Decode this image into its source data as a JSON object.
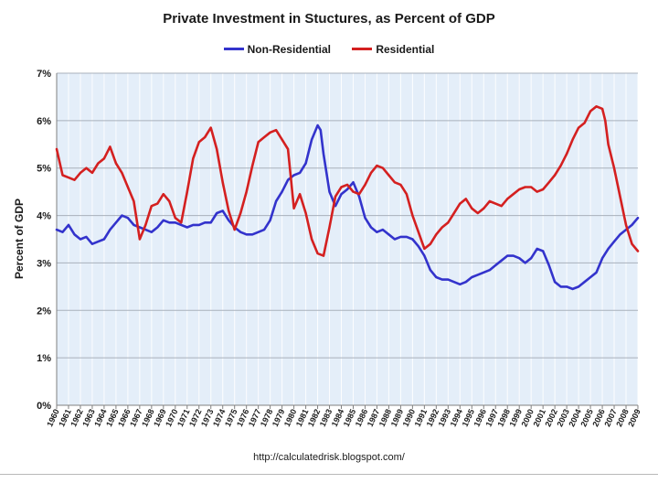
{
  "chart_data": {
    "type": "line",
    "title": "Private Investment in Stuctures, as Percent of GDP",
    "xlabel": "",
    "ylabel": "Percent of GDP",
    "source": "http://calculatedrisk.blogspot.com/",
    "ylim": [
      0,
      7
    ],
    "xlim": [
      1960,
      2009
    ],
    "y_ticks": [
      "0%",
      "1%",
      "2%",
      "3%",
      "4%",
      "5%",
      "6%",
      "7%"
    ],
    "x_ticks": [
      "1960",
      "1961",
      "1962",
      "1963",
      "1964",
      "1965",
      "1966",
      "1967",
      "1968",
      "1969",
      "1970",
      "1971",
      "1972",
      "1973",
      "1974",
      "1975",
      "1976",
      "1977",
      "1978",
      "1979",
      "1980",
      "1981",
      "1982",
      "1983",
      "1984",
      "1985",
      "1986",
      "1987",
      "1988",
      "1989",
      "1990",
      "1991",
      "1992",
      "1993",
      "1994",
      "1995",
      "1996",
      "1997",
      "1998",
      "1999",
      "2000",
      "2001",
      "2002",
      "2003",
      "2004",
      "2005",
      "2006",
      "2007",
      "2008",
      "2009"
    ],
    "grid": true,
    "legend_position": "top-center",
    "series": [
      {
        "name": "Non-Residential",
        "color": "#3333cc",
        "x": [
          1960.0,
          1960.5,
          1961.0,
          1961.5,
          1962.0,
          1962.5,
          1963.0,
          1963.5,
          1964.0,
          1964.5,
          1965.0,
          1965.5,
          1966.0,
          1966.5,
          1967.0,
          1967.5,
          1968.0,
          1968.5,
          1969.0,
          1969.5,
          1970.0,
          1970.5,
          1971.0,
          1971.5,
          1972.0,
          1972.5,
          1973.0,
          1973.5,
          1974.0,
          1974.5,
          1975.0,
          1975.5,
          1976.0,
          1976.5,
          1977.0,
          1977.5,
          1978.0,
          1978.5,
          1979.0,
          1979.5,
          1980.0,
          1980.5,
          1981.0,
          1981.5,
          1982.0,
          1982.25,
          1982.5,
          1983.0,
          1983.5,
          1984.0,
          1984.5,
          1985.0,
          1985.5,
          1986.0,
          1986.5,
          1987.0,
          1987.5,
          1988.0,
          1988.5,
          1989.0,
          1989.5,
          1990.0,
          1990.5,
          1991.0,
          1991.5,
          1992.0,
          1992.5,
          1993.0,
          1993.5,
          1994.0,
          1994.5,
          1995.0,
          1995.5,
          1996.0,
          1996.5,
          1997.0,
          1997.5,
          1998.0,
          1998.5,
          1999.0,
          1999.5,
          2000.0,
          2000.5,
          2001.0,
          2001.5,
          2002.0,
          2002.5,
          2003.0,
          2003.5,
          2004.0,
          2004.5,
          2005.0,
          2005.5,
          2006.0,
          2006.5,
          2007.0,
          2007.5,
          2008.0,
          2008.5,
          2009.0
        ],
        "values": [
          3.7,
          3.65,
          3.8,
          3.6,
          3.5,
          3.55,
          3.4,
          3.45,
          3.5,
          3.7,
          3.85,
          4.0,
          3.95,
          3.8,
          3.75,
          3.7,
          3.65,
          3.75,
          3.9,
          3.85,
          3.85,
          3.8,
          3.75,
          3.8,
          3.8,
          3.85,
          3.85,
          4.05,
          4.1,
          3.9,
          3.75,
          3.65,
          3.6,
          3.6,
          3.65,
          3.7,
          3.9,
          4.3,
          4.5,
          4.75,
          4.85,
          4.9,
          5.1,
          5.6,
          5.9,
          5.8,
          5.3,
          4.5,
          4.2,
          4.45,
          4.55,
          4.7,
          4.4,
          3.95,
          3.75,
          3.65,
          3.7,
          3.6,
          3.5,
          3.55,
          3.55,
          3.5,
          3.35,
          3.15,
          2.85,
          2.7,
          2.65,
          2.65,
          2.6,
          2.55,
          2.6,
          2.7,
          2.75,
          2.8,
          2.85,
          2.95,
          3.05,
          3.15,
          3.15,
          3.1,
          3.0,
          3.1,
          3.3,
          3.25,
          2.95,
          2.6,
          2.5,
          2.5,
          2.45,
          2.5,
          2.6,
          2.7,
          2.8,
          3.1,
          3.3,
          3.45,
          3.6,
          3.7,
          3.8,
          3.95
        ]
      },
      {
        "name": "Residential",
        "color": "#d42020",
        "x": [
          1960.0,
          1960.5,
          1961.0,
          1961.5,
          1962.0,
          1962.5,
          1963.0,
          1963.5,
          1964.0,
          1964.5,
          1965.0,
          1965.5,
          1966.0,
          1966.5,
          1967.0,
          1967.5,
          1968.0,
          1968.5,
          1969.0,
          1969.5,
          1970.0,
          1970.5,
          1971.0,
          1971.5,
          1972.0,
          1972.5,
          1973.0,
          1973.5,
          1974.0,
          1974.5,
          1975.0,
          1975.5,
          1976.0,
          1976.5,
          1977.0,
          1977.5,
          1978.0,
          1978.5,
          1979.0,
          1979.5,
          1980.0,
          1980.5,
          1981.0,
          1981.5,
          1982.0,
          1982.5,
          1983.0,
          1983.5,
          1984.0,
          1984.5,
          1985.0,
          1985.5,
          1986.0,
          1986.5,
          1987.0,
          1987.5,
          1988.0,
          1988.5,
          1989.0,
          1989.5,
          1990.0,
          1990.5,
          1991.0,
          1991.5,
          1992.0,
          1992.5,
          1993.0,
          1993.5,
          1994.0,
          1994.5,
          1995.0,
          1995.5,
          1996.0,
          1996.5,
          1997.0,
          1997.5,
          1998.0,
          1998.5,
          1999.0,
          1999.5,
          2000.0,
          2000.5,
          2001.0,
          2001.5,
          2002.0,
          2002.5,
          2003.0,
          2003.5,
          2004.0,
          2004.5,
          2005.0,
          2005.5,
          2006.0,
          2006.25,
          2006.5,
          2007.0,
          2007.5,
          2008.0,
          2008.5,
          2009.0
        ],
        "values": [
          5.4,
          4.85,
          4.8,
          4.75,
          4.9,
          5.0,
          4.9,
          5.1,
          5.2,
          5.45,
          5.1,
          4.9,
          4.6,
          4.3,
          3.5,
          3.8,
          4.2,
          4.25,
          4.45,
          4.3,
          3.95,
          3.85,
          4.5,
          5.2,
          5.55,
          5.65,
          5.85,
          5.4,
          4.7,
          4.1,
          3.7,
          4.05,
          4.5,
          5.05,
          5.55,
          5.65,
          5.75,
          5.8,
          5.6,
          5.4,
          4.15,
          4.45,
          4.05,
          3.5,
          3.2,
          3.15,
          3.75,
          4.4,
          4.6,
          4.65,
          4.5,
          4.45,
          4.65,
          4.9,
          5.05,
          5.0,
          4.85,
          4.7,
          4.65,
          4.45,
          4.0,
          3.65,
          3.3,
          3.4,
          3.6,
          3.75,
          3.85,
          4.05,
          4.25,
          4.35,
          4.15,
          4.05,
          4.15,
          4.3,
          4.25,
          4.2,
          4.35,
          4.45,
          4.55,
          4.6,
          4.6,
          4.5,
          4.55,
          4.7,
          4.85,
          5.05,
          5.3,
          5.6,
          5.85,
          5.95,
          6.2,
          6.3,
          6.25,
          6.0,
          5.5,
          5.0,
          4.4,
          3.8,
          3.4,
          3.25
        ]
      }
    ]
  }
}
